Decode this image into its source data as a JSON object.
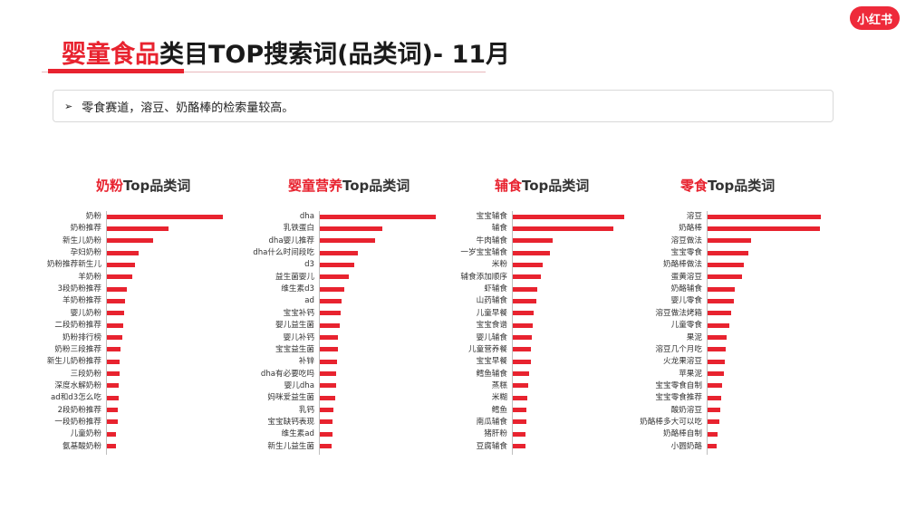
{
  "brand": {
    "logo_text": "小红书"
  },
  "header": {
    "title_red": "婴童食品",
    "title_rest": "类目TOP搜索词(品类词)- 11月"
  },
  "summary": {
    "arrow": "➢",
    "text": "零食赛道，溶豆、奶酪棒的检索量较高。"
  },
  "chart_data": [
    {
      "type": "bar",
      "title_red": "奶粉",
      "title_rest": "Top品类词",
      "categories": [
        "奶粉",
        "奶粉推荐",
        "新生儿奶粉",
        "孕妇奶粉",
        "奶粉推荐新生儿",
        "羊奶粉",
        "3段奶粉推荐",
        "羊奶粉推荐",
        "婴儿奶粉",
        "二段奶粉推荐",
        "奶粉排行榜",
        "奶粉三段推荐",
        "新生儿奶粉推荐",
        "三段奶粉",
        "深度水解奶粉",
        "ad和d3怎么吃",
        "2段奶粉推荐",
        "一段奶粉推荐",
        "儿童奶粉",
        "氨基酸奶粉"
      ],
      "values": [
        100,
        53,
        40,
        27,
        24,
        22,
        17,
        16,
        15,
        14,
        13,
        12,
        11,
        11,
        10,
        10,
        9,
        9,
        8,
        8
      ]
    },
    {
      "type": "bar",
      "title_red": "婴童营养",
      "title_rest": "Top品类词",
      "categories": [
        "dha",
        "乳铁蛋白",
        "dha婴儿推荐",
        "dha什么时间段吃",
        "d3",
        "益生菌婴儿",
        "维生素d3",
        "ad",
        "宝宝补钙",
        "婴儿益生菌",
        "婴儿补钙",
        "宝宝益生菌",
        "补锌",
        "dha有必要吃吗",
        "婴儿dha",
        "妈咪爱益生菌",
        "乳钙",
        "宝宝缺钙表现",
        "维生素ad",
        "新生儿益生菌"
      ],
      "values": [
        100,
        54,
        48,
        33,
        30,
        25,
        21,
        19,
        18,
        17,
        16,
        16,
        15,
        14,
        14,
        13,
        12,
        11,
        11,
        10
      ]
    },
    {
      "type": "bar",
      "title_red": "辅食",
      "title_rest": "Top品类词",
      "categories": [
        "宝宝辅食",
        "辅食",
        "牛肉辅食",
        "一岁宝宝辅食",
        "米粉",
        "辅食添加顺序",
        "虾辅食",
        "山药辅食",
        "儿童早餐",
        "宝宝食谱",
        "婴儿辅食",
        "儿童营养餐",
        "宝宝早餐",
        "鳕鱼辅食",
        "蒸糕",
        "米糊",
        "鳕鱼",
        "南瓜辅食",
        "猪肝粉",
        "豆腐辅食"
      ],
      "values": [
        100,
        90,
        36,
        33,
        27,
        25,
        22,
        21,
        19,
        18,
        17,
        16,
        16,
        15,
        14,
        13,
        12,
        12,
        11,
        11
      ]
    },
    {
      "type": "bar",
      "title_red": "零食",
      "title_rest": "Top品类词",
      "categories": [
        "溶豆",
        "奶酪棒",
        "溶豆做法",
        "宝宝零食",
        "奶酪棒做法",
        "蛋黄溶豆",
        "奶酪辅食",
        "婴儿零食",
        "溶豆做法烤箱",
        "儿童零食",
        "果泥",
        "溶豆几个月吃",
        "火龙果溶豆",
        "苹果泥",
        "宝宝零食自制",
        "宝宝零食推荐",
        "酸奶溶豆",
        "奶酪棒多大可以吃",
        "奶酪棒自制",
        "小圆奶酪"
      ],
      "values": [
        100,
        99,
        38,
        36,
        32,
        30,
        24,
        23,
        21,
        19,
        17,
        16,
        15,
        14,
        13,
        12,
        11,
        10,
        9,
        8
      ]
    }
  ]
}
